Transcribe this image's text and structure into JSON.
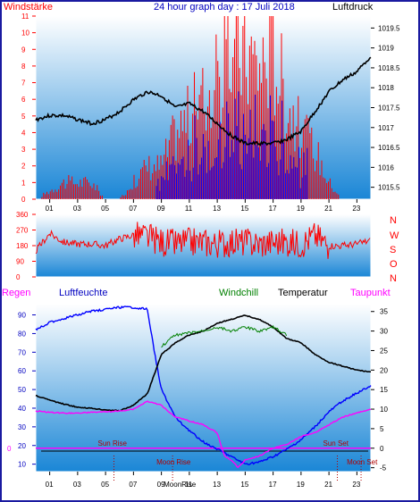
{
  "header": {
    "left_label": "Windstärke",
    "title": "24 hour graph day : 17 Juli 2018",
    "right_label": "Luftdruck"
  },
  "wind_dir_labels": [
    "N",
    "W",
    "S",
    "O",
    "N"
  ],
  "lower_labels": {
    "regen": "Regen",
    "luftfeuchte": "Luftfeuchte",
    "windchill": "Windchill",
    "temperatur": "Temperatur",
    "taupunkt": "Taupunkt"
  },
  "events": {
    "sun_rise": "Sun Rise",
    "sun_set": "Sun Set",
    "moon_rise_upper": "Moon Rise",
    "moon_rise_lower": "MoonRise",
    "moon_set": "Moon Set"
  },
  "colors": {
    "wind_speed": "#ff0000",
    "wind_gust": "#0000ff",
    "pressure": "#000000",
    "wind_dir": "#ff0000",
    "humidity": "#0000ff",
    "temperature": "#000000",
    "windchill": "#008000",
    "dewpoint": "#ff00ff",
    "freezing_line": "#ff00ff",
    "bg_top": "#ffffff",
    "bg_bottom": "#1a86d6"
  },
  "chart_data": [
    {
      "type": "line",
      "name": "wind-pressure",
      "title": "24 hour graph day : 17 Juli 2018",
      "x_ticks": [
        "01",
        "03",
        "05",
        "07",
        "09",
        "11",
        "13",
        "15",
        "17",
        "19",
        "21",
        "23"
      ],
      "left_axis": {
        "label": "Windstärke",
        "ticks": [
          0,
          1,
          2,
          3,
          4,
          5,
          6,
          7,
          8,
          9,
          10,
          11
        ],
        "ylim": [
          0,
          11
        ]
      },
      "right_axis": {
        "label": "Luftdruck",
        "ticks": [
          "1015.5",
          "1016",
          "1016.5",
          "1017",
          "1017.5",
          "1018",
          "1018.5",
          "1019",
          "1019.5"
        ],
        "ylim": [
          1015.2,
          1019.8
        ]
      },
      "series": [
        {
          "name": "Windstärke",
          "axis": "left",
          "hours": [
            0,
            2,
            3,
            4,
            5,
            6,
            7,
            8,
            9,
            10,
            11,
            12,
            13,
            14,
            15,
            16,
            17,
            18,
            19,
            20,
            21,
            22,
            23,
            24
          ],
          "values": [
            0,
            1,
            1,
            1,
            0,
            0,
            1,
            2,
            2,
            4,
            5,
            6,
            7,
            9,
            9,
            8,
            9,
            6,
            4,
            3,
            1,
            0,
            0,
            0
          ]
        },
        {
          "name": "Luftdruck",
          "axis": "right",
          "hours": [
            0,
            1,
            2,
            3,
            4,
            5,
            6,
            7,
            8,
            9,
            10,
            11,
            12,
            13,
            14,
            15,
            16,
            17,
            18,
            19,
            20,
            21,
            22,
            23,
            24
          ],
          "values": [
            1017.2,
            1017.3,
            1017.3,
            1017.2,
            1017.1,
            1017.2,
            1017.4,
            1017.7,
            1017.9,
            1017.8,
            1017.5,
            1017.6,
            1017.4,
            1017.1,
            1016.8,
            1016.6,
            1016.6,
            1016.6,
            1016.7,
            1016.9,
            1017.4,
            1017.9,
            1018.2,
            1018.4,
            1018.8
          ]
        }
      ]
    },
    {
      "type": "scatter",
      "name": "wind-direction",
      "y_ticks": [
        0,
        90,
        180,
        270,
        360
      ],
      "ylim": [
        0,
        360
      ],
      "series": [
        {
          "name": "Windrichtung",
          "hours": [
            0,
            1,
            2,
            3,
            4,
            5,
            6,
            7,
            8,
            9,
            10,
            11,
            12,
            13,
            14,
            15,
            16,
            17,
            18,
            19,
            20,
            21,
            22,
            23,
            24
          ],
          "values": [
            150,
            250,
            200,
            190,
            190,
            180,
            220,
            240,
            230,
            200,
            190,
            200,
            200,
            190,
            200,
            200,
            190,
            200,
            200,
            190,
            240,
            180,
            180,
            190,
            210
          ]
        }
      ]
    },
    {
      "type": "line",
      "name": "humidity-temperature",
      "left_axis": {
        "label": "Luftfeuchte",
        "ticks": [
          10,
          20,
          30,
          40,
          50,
          60,
          70,
          80,
          90
        ],
        "ylim": [
          6,
          96
        ]
      },
      "right_axis": {
        "label": "Temperatur",
        "ticks": [
          -5,
          0,
          5,
          10,
          15,
          20,
          25,
          30,
          35
        ],
        "ylim": [
          -6,
          37
        ]
      },
      "series": [
        {
          "name": "Luftfeuchte",
          "axis": "left",
          "hours": [
            0,
            1,
            2,
            3,
            4,
            5,
            6,
            7,
            8,
            8.5,
            9,
            10,
            11,
            12,
            13,
            14,
            15,
            16,
            17,
            18,
            19,
            20,
            21,
            22,
            23,
            24
          ],
          "values": [
            82,
            86,
            88,
            90,
            92,
            93,
            94,
            94,
            93,
            70,
            50,
            35,
            28,
            22,
            18,
            14,
            10,
            11,
            14,
            18,
            23,
            30,
            38,
            44,
            48,
            52
          ]
        },
        {
          "name": "Temperatur",
          "axis": "right",
          "hours": [
            0,
            1,
            2,
            3,
            4,
            5,
            6,
            7,
            8,
            9,
            10,
            11,
            12,
            13,
            14,
            15,
            16,
            17,
            18,
            19,
            20,
            21,
            22,
            23,
            24
          ],
          "values": [
            13.5,
            12.3,
            11.3,
            10.5,
            10.2,
            9.8,
            9.6,
            11,
            14,
            24,
            27,
            29,
            30,
            32,
            33,
            34,
            33,
            31,
            28,
            27,
            24,
            22,
            21,
            20,
            19.5
          ]
        },
        {
          "name": "Windchill",
          "axis": "right",
          "hours": [
            9,
            10,
            11,
            12,
            13,
            14,
            15,
            16,
            17,
            18
          ],
          "values": [
            26,
            29,
            29.5,
            30,
            31,
            30,
            31,
            30,
            31,
            29
          ]
        },
        {
          "name": "Taupunkt",
          "axis": "right",
          "hours": [
            0,
            1,
            2,
            3,
            4,
            5,
            6,
            7,
            8,
            9,
            10,
            11,
            12,
            13,
            13.5,
            14,
            14.5,
            15,
            16,
            17,
            18,
            19,
            20,
            21,
            22,
            23,
            24
          ],
          "values": [
            9.5,
            9.2,
            9,
            9,
            9.2,
            9.3,
            9.5,
            10,
            12,
            11,
            8,
            7,
            6,
            4,
            -2,
            -3,
            -5,
            -3,
            -2,
            0,
            1,
            3,
            4,
            6,
            8,
            9,
            10
          ]
        }
      ],
      "freezing_line": 0,
      "events": [
        {
          "label": "Sun Rise",
          "hour": 5.6
        },
        {
          "label": "Moon Rise",
          "hour": 9.8
        },
        {
          "label": "Sun Set",
          "hour": 21.6
        },
        {
          "label": "Moon Set",
          "hour": 23.3
        }
      ]
    }
  ]
}
